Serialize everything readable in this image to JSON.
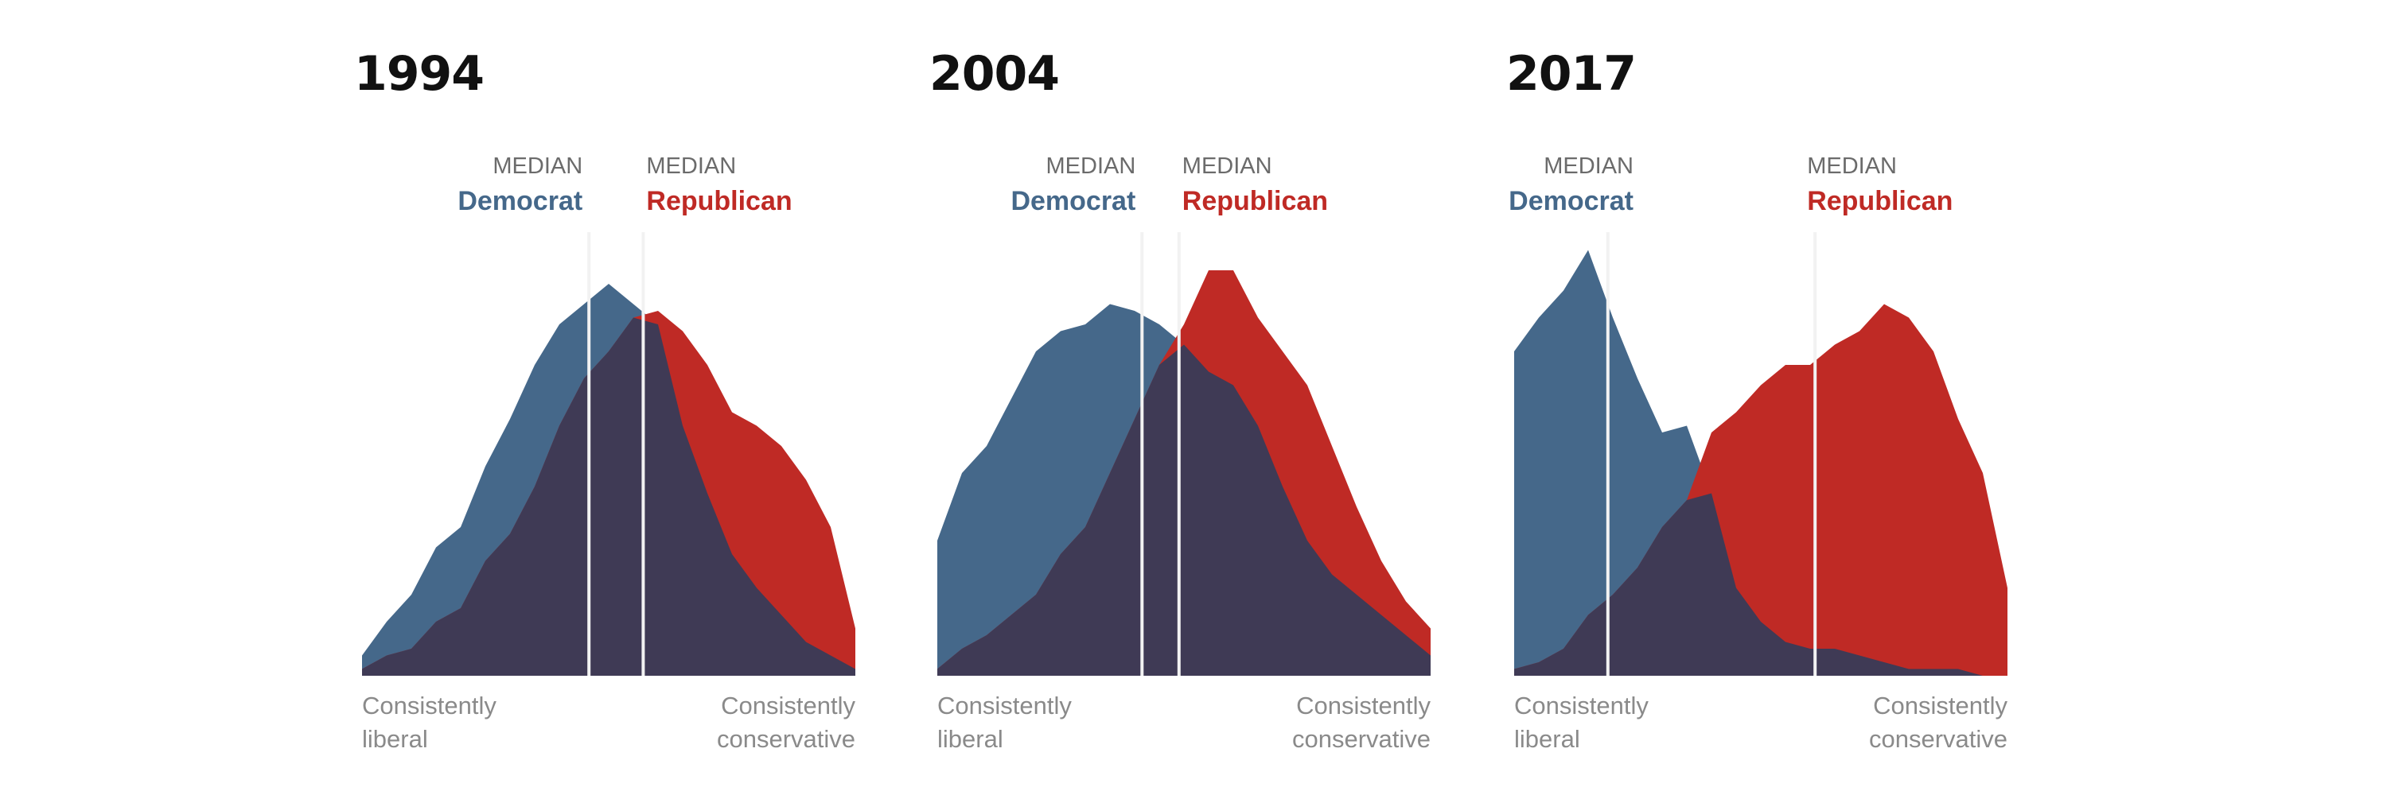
{
  "colors": {
    "democrat": "#45688A",
    "republican": "#BF2A25",
    "overlap": "#3F3A55",
    "median_line": "#f2f2f2",
    "median_word": "#6b6b6b"
  },
  "labels": {
    "median": "MEDIAN",
    "democrat": "Democrat",
    "republican": "Republican",
    "left_end": [
      "Consistently",
      "liberal"
    ],
    "right_end": [
      "Consistently",
      "conservative"
    ]
  },
  "chart_data": [
    {
      "type": "area",
      "title": "1994",
      "x": [
        -10,
        -9,
        -8,
        -7,
        -6,
        -5,
        -4,
        -3,
        -2,
        -1,
        0,
        1,
        2,
        3,
        4,
        5,
        6,
        7,
        8,
        9,
        10
      ],
      "series": [
        {
          "name": "Democrat",
          "values": [
            3,
            8,
            12,
            19,
            22,
            31,
            38,
            46,
            52,
            55,
            58,
            55,
            52,
            37,
            27,
            18,
            13,
            9,
            5,
            3,
            1
          ]
        },
        {
          "name": "Republican",
          "values": [
            1,
            3,
            4,
            8,
            10,
            17,
            21,
            28,
            37,
            44,
            48,
            53,
            54,
            51,
            46,
            39,
            37,
            34,
            29,
            22,
            7
          ]
        }
      ],
      "median_democrat": -0.8,
      "median_republican": 1.4
    },
    {
      "type": "area",
      "title": "2004",
      "x": [
        -10,
        -9,
        -8,
        -7,
        -6,
        -5,
        -4,
        -3,
        -2,
        -1,
        0,
        1,
        2,
        3,
        4,
        5,
        6,
        7,
        8,
        9,
        10
      ],
      "series": [
        {
          "name": "Democrat",
          "values": [
            20,
            30,
            34,
            41,
            48,
            51,
            52,
            55,
            54,
            52,
            49,
            45,
            43,
            37,
            28,
            20,
            15,
            12,
            9,
            6,
            3
          ]
        },
        {
          "name": "Republican",
          "values": [
            1,
            4,
            6,
            9,
            12,
            18,
            22,
            30,
            38,
            46,
            52,
            60,
            60,
            53,
            48,
            43,
            34,
            25,
            17,
            11,
            7
          ]
        }
      ],
      "median_democrat": -1.7,
      "median_republican": -0.2
    },
    {
      "type": "area",
      "title": "2017",
      "x": [
        -10,
        -9,
        -8,
        -7,
        -6,
        -5,
        -4,
        -3,
        -2,
        -1,
        0,
        1,
        2,
        3,
        4,
        5,
        6,
        7,
        8,
        9,
        10
      ],
      "series": [
        {
          "name": "Democrat",
          "values": [
            48,
            53,
            57,
            63,
            53,
            44,
            36,
            37,
            27,
            13,
            8,
            5,
            4,
            4,
            3,
            2,
            1,
            1,
            1,
            0,
            0
          ]
        },
        {
          "name": "Republican",
          "values": [
            1,
            2,
            4,
            9,
            12,
            16,
            22,
            26,
            36,
            39,
            43,
            46,
            46,
            49,
            51,
            55,
            53,
            48,
            38,
            30,
            13
          ]
        }
      ],
      "median_democrat": -6.2,
      "median_republican": 2.2
    }
  ]
}
